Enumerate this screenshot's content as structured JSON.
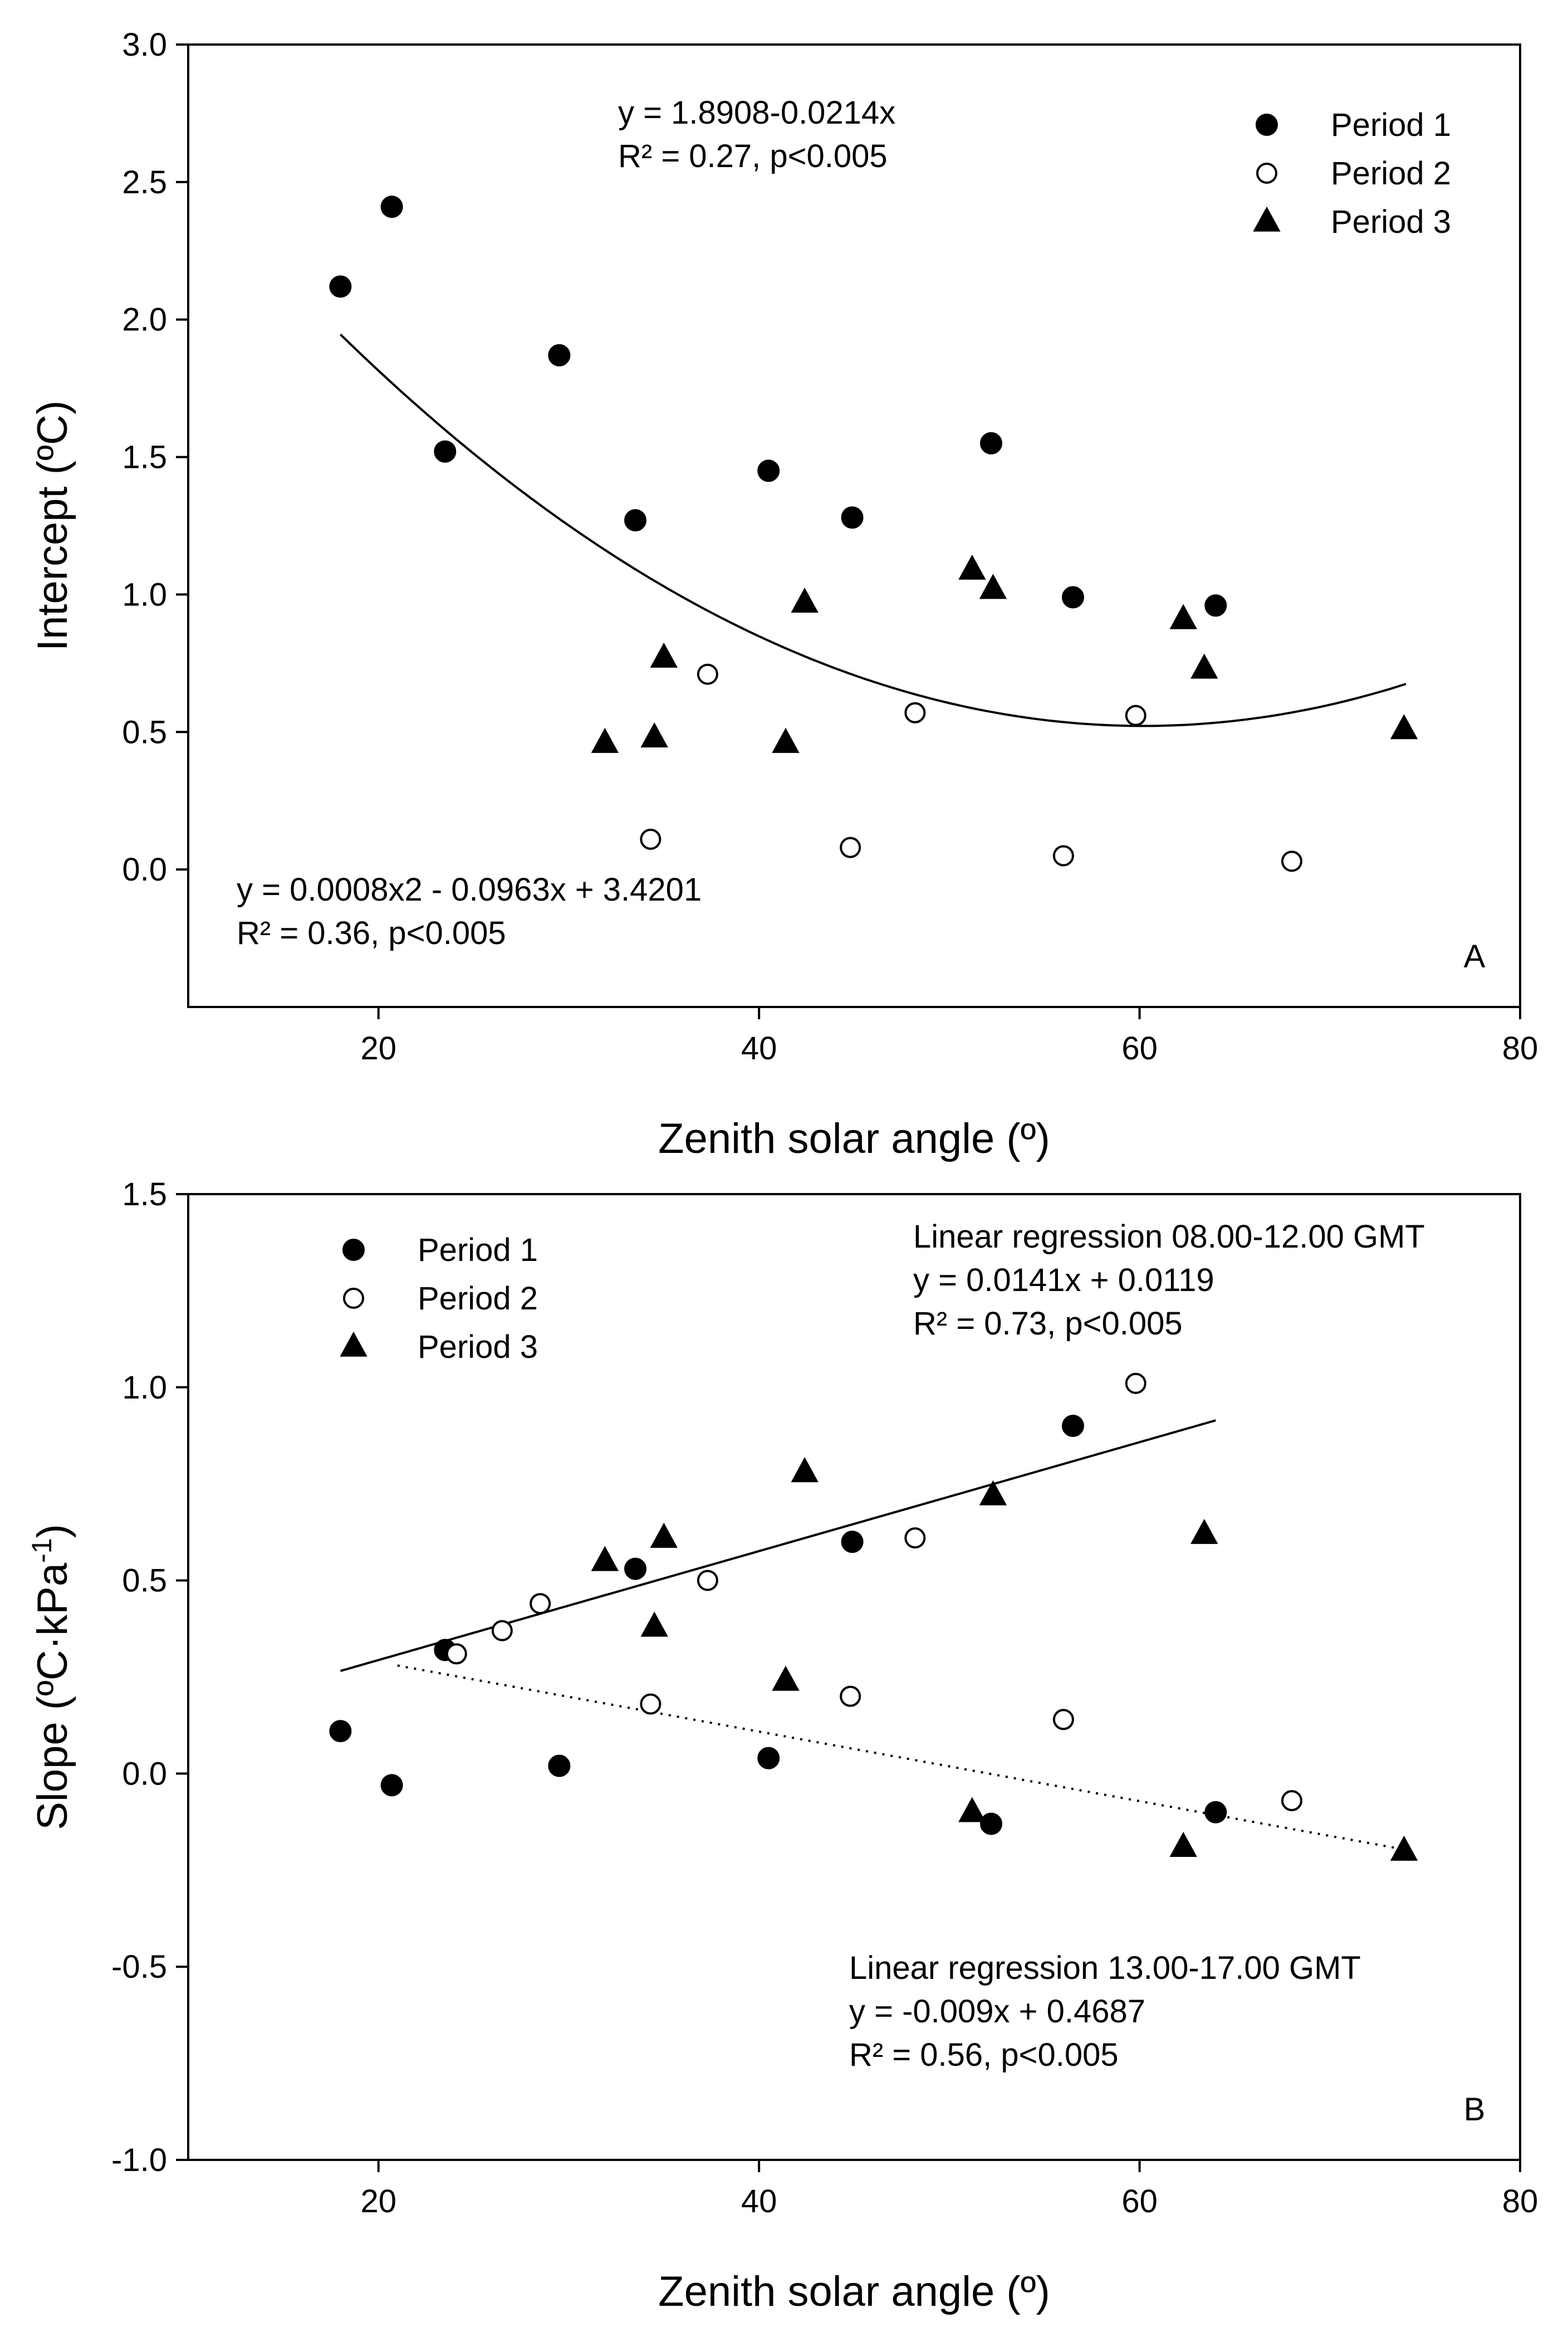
{
  "chart_data": [
    {
      "type": "scatter",
      "panel_label": "A",
      "xlabel": "Zenith solar angle (º)",
      "ylabel": "Intercept (ºC)",
      "xlim": [
        10,
        80
      ],
      "ylim": [
        -0.5,
        3.0
      ],
      "xticks": [
        20,
        40,
        60,
        80
      ],
      "yticks": [
        0.0,
        0.5,
        1.0,
        1.5,
        2.0,
        2.5,
        3.0
      ],
      "ytick_labels": [
        "0.0",
        "0.5",
        "1.0",
        "1.5",
        "2.0",
        "2.5",
        "3.0"
      ],
      "legend_position": "top-right",
      "series": [
        {
          "name": "Period 1",
          "marker": "filled-circle",
          "points": [
            [
              18.0,
              2.12
            ],
            [
              20.7,
              2.41
            ],
            [
              23.5,
              1.52
            ],
            [
              29.5,
              1.87
            ],
            [
              33.5,
              1.27
            ],
            [
              40.5,
              1.45
            ],
            [
              44.9,
              1.28
            ],
            [
              52.2,
              1.55
            ],
            [
              56.5,
              0.99
            ],
            [
              64.0,
              0.96
            ]
          ]
        },
        {
          "name": "Period 2",
          "marker": "open-circle",
          "points": [
            [
              34.3,
              0.11
            ],
            [
              37.3,
              0.71
            ],
            [
              44.8,
              0.08
            ],
            [
              48.2,
              0.57
            ],
            [
              56.0,
              0.05
            ],
            [
              59.8,
              0.56
            ],
            [
              68.0,
              0.03
            ]
          ]
        },
        {
          "name": "Period 3",
          "marker": "filled-triangle",
          "points": [
            [
              31.9,
              0.46
            ],
            [
              34.5,
              0.48
            ],
            [
              35.0,
              0.77
            ],
            [
              41.4,
              0.46
            ],
            [
              42.4,
              0.97
            ],
            [
              51.2,
              1.09
            ],
            [
              52.3,
              1.02
            ],
            [
              62.3,
              0.91
            ],
            [
              63.4,
              0.73
            ],
            [
              73.9,
              0.51
            ]
          ]
        }
      ],
      "fits": [
        {
          "name": "quadratic fit",
          "style": "solid",
          "coefficients": [
            0.0008,
            -0.0963,
            3.4201
          ],
          "x_range": [
            18,
            74
          ]
        }
      ],
      "annotations": [
        {
          "lines": [
            "y = 1.8908-0.0214x",
            "R² = 0.27, p<0.005"
          ]
        },
        {
          "lines": [
            "y = 0.0008x2 - 0.0963x + 3.4201",
            "R² = 0.36, p<0.005"
          ]
        }
      ]
    },
    {
      "type": "scatter",
      "panel_label": "B",
      "xlabel": "Zenith solar angle (º)",
      "ylabel": "Slope (ºC·kPa-1)",
      "ylabel_parts": [
        "Slope (ºC·kPa",
        "-1",
        ")"
      ],
      "xlim": [
        10,
        80
      ],
      "ylim": [
        -1.0,
        1.5
      ],
      "xticks": [
        20,
        40,
        60,
        80
      ],
      "yticks": [
        -1.0,
        -0.5,
        0.0,
        0.5,
        1.0,
        1.5
      ],
      "ytick_labels": [
        "-1.0",
        "-0.5",
        "0.0",
        "0.5",
        "1.0",
        "1.5"
      ],
      "legend_position": "top-left",
      "series": [
        {
          "name": "Period 1",
          "marker": "filled-circle",
          "points": [
            [
              18.0,
              0.11
            ],
            [
              20.7,
              -0.03
            ],
            [
              23.5,
              0.32
            ],
            [
              29.5,
              0.02
            ],
            [
              33.5,
              0.53
            ],
            [
              40.5,
              0.04
            ],
            [
              44.9,
              0.6
            ],
            [
              52.2,
              -0.13
            ],
            [
              56.5,
              0.9
            ],
            [
              64.0,
              -0.1
            ]
          ]
        },
        {
          "name": "Period 2",
          "marker": "open-circle",
          "points": [
            [
              24.1,
              0.31
            ],
            [
              26.5,
              0.37
            ],
            [
              28.5,
              0.44
            ],
            [
              34.3,
              0.18
            ],
            [
              37.3,
              0.5
            ],
            [
              44.8,
              0.2
            ],
            [
              48.2,
              0.61
            ],
            [
              56.0,
              0.14
            ],
            [
              59.8,
              1.01
            ],
            [
              68.0,
              -0.07
            ]
          ]
        },
        {
          "name": "Period 3",
          "marker": "filled-triangle",
          "points": [
            [
              31.9,
              0.55
            ],
            [
              34.5,
              0.38
            ],
            [
              35.0,
              0.61
            ],
            [
              41.4,
              0.24
            ],
            [
              42.4,
              0.78
            ],
            [
              51.2,
              -0.1
            ],
            [
              52.3,
              0.72
            ],
            [
              62.3,
              -0.19
            ],
            [
              63.4,
              0.62
            ],
            [
              73.9,
              -0.2
            ]
          ]
        }
      ],
      "fits": [
        {
          "name": "Linear regression 08.00-12.00 GMT",
          "style": "solid",
          "slope": 0.0141,
          "intercept": 0.0119,
          "x_range": [
            18,
            64
          ]
        },
        {
          "name": "Linear regression 13.00-17.00 GMT",
          "style": "dotted",
          "slope": -0.009,
          "intercept": 0.4687,
          "x_range": [
            21,
            74
          ]
        }
      ],
      "annotations": [
        {
          "lines": [
            "Linear regression 08.00-12.00 GMT",
            "y = 0.0141x + 0.0119",
            "R² = 0.73, p<0.005"
          ]
        },
        {
          "lines": [
            "Linear regression 13.00-17.00 GMT",
            "y = -0.009x + 0.4687",
            "R² = 0.56, p<0.005"
          ]
        }
      ]
    }
  ]
}
